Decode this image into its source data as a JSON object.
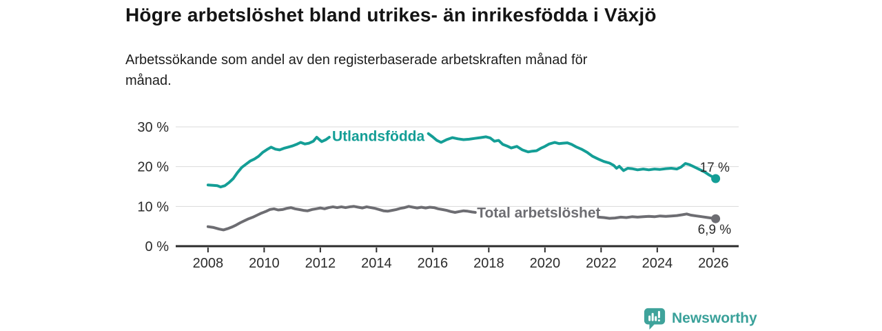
{
  "chart_data": {
    "type": "line",
    "title": "Högre arbetslöshet bland utrikes- än inrikesfödda i Växjö",
    "subtitle_lines": [
      "Arbetssökande som andel av den registerbaserade arbetskraften månad för",
      "månad."
    ],
    "xlabel": "",
    "ylabel": "",
    "xlim": [
      2006.85,
      2026.9
    ],
    "ylim": [
      0,
      30
    ],
    "x_ticks": [
      2008,
      2010,
      2012,
      2014,
      2016,
      2018,
      2020,
      2022,
      2024,
      2026
    ],
    "x_tick_labels": [
      "2008",
      "2010",
      "2012",
      "2014",
      "2016",
      "2018",
      "2020",
      "2022",
      "2024",
      "2026"
    ],
    "y_ticks": [
      0,
      10,
      20,
      30
    ],
    "y_tick_labels": [
      "0 %",
      "10 %",
      "20 %",
      "30 %"
    ],
    "grid": "horizontal",
    "legend_position": "inline-on-line",
    "colors": {
      "grid": "#d9d9d9",
      "axis": "#2b2b2b",
      "axis_text": "#2b2b2b"
    },
    "series": [
      {
        "name": "Utlandsfödda",
        "slug": "utlandsfodda",
        "color": "#149e96",
        "label_at": [
          2012.42,
          27.7
        ],
        "end_label": "17 %",
        "end_value": 17.0,
        "segments": [
          [
            [
              2008.0,
              15.4
            ],
            [
              2008.17,
              15.3
            ],
            [
              2008.33,
              15.2
            ],
            [
              2008.45,
              14.9
            ],
            [
              2008.6,
              15.2
            ],
            [
              2008.75,
              16.0
            ],
            [
              2008.9,
              17.0
            ],
            [
              2009.05,
              18.5
            ],
            [
              2009.2,
              19.8
            ],
            [
              2009.35,
              20.6
            ],
            [
              2009.5,
              21.4
            ],
            [
              2009.65,
              21.9
            ],
            [
              2009.8,
              22.6
            ],
            [
              2009.95,
              23.6
            ],
            [
              2010.1,
              24.3
            ],
            [
              2010.25,
              24.9
            ],
            [
              2010.4,
              24.4
            ],
            [
              2010.55,
              24.2
            ],
            [
              2010.7,
              24.6
            ],
            [
              2010.85,
              24.9
            ],
            [
              2011.0,
              25.2
            ],
            [
              2011.15,
              25.6
            ],
            [
              2011.3,
              26.1
            ],
            [
              2011.45,
              25.7
            ],
            [
              2011.6,
              25.9
            ],
            [
              2011.75,
              26.4
            ],
            [
              2011.87,
              27.4
            ],
            [
              2011.95,
              26.9
            ],
            [
              2012.05,
              26.3
            ],
            [
              2012.2,
              26.8
            ],
            [
              2012.32,
              27.4
            ]
          ],
          [
            [
              2015.85,
              28.3
            ],
            [
              2016.0,
              27.5
            ],
            [
              2016.15,
              26.6
            ],
            [
              2016.3,
              26.1
            ],
            [
              2016.5,
              26.8
            ],
            [
              2016.7,
              27.3
            ],
            [
              2016.9,
              27.0
            ],
            [
              2017.1,
              26.8
            ],
            [
              2017.3,
              26.9
            ],
            [
              2017.5,
              27.1
            ],
            [
              2017.7,
              27.3
            ],
            [
              2017.9,
              27.5
            ],
            [
              2018.05,
              27.2
            ],
            [
              2018.2,
              26.4
            ],
            [
              2018.35,
              26.6
            ],
            [
              2018.5,
              25.6
            ],
            [
              2018.65,
              25.2
            ],
            [
              2018.8,
              24.7
            ],
            [
              2019.0,
              25.1
            ],
            [
              2019.2,
              24.2
            ],
            [
              2019.4,
              23.7
            ],
            [
              2019.55,
              23.9
            ],
            [
              2019.7,
              24.0
            ],
            [
              2019.85,
              24.6
            ],
            [
              2020.0,
              25.1
            ],
            [
              2020.15,
              25.7
            ],
            [
              2020.35,
              26.1
            ],
            [
              2020.5,
              25.8
            ],
            [
              2020.65,
              25.9
            ],
            [
              2020.8,
              26.0
            ],
            [
              2020.95,
              25.6
            ],
            [
              2021.1,
              25.0
            ],
            [
              2021.3,
              24.4
            ],
            [
              2021.5,
              23.6
            ],
            [
              2021.7,
              22.6
            ],
            [
              2021.9,
              21.9
            ],
            [
              2022.1,
              21.3
            ],
            [
              2022.3,
              20.9
            ],
            [
              2022.45,
              20.3
            ],
            [
              2022.55,
              19.6
            ],
            [
              2022.65,
              20.1
            ],
            [
              2022.8,
              19.0
            ],
            [
              2022.95,
              19.6
            ],
            [
              2023.1,
              19.5
            ],
            [
              2023.3,
              19.2
            ],
            [
              2023.5,
              19.4
            ],
            [
              2023.7,
              19.2
            ],
            [
              2023.9,
              19.4
            ],
            [
              2024.1,
              19.3
            ],
            [
              2024.3,
              19.5
            ],
            [
              2024.5,
              19.6
            ],
            [
              2024.7,
              19.4
            ],
            [
              2024.85,
              19.9
            ],
            [
              2025.0,
              20.8
            ],
            [
              2025.15,
              20.5
            ],
            [
              2025.3,
              20.0
            ],
            [
              2025.5,
              19.3
            ],
            [
              2025.7,
              18.6
            ],
            [
              2025.85,
              17.9
            ],
            [
              2026.08,
              17.0
            ]
          ]
        ]
      },
      {
        "name": "Total arbetslöshet",
        "slug": "total-arbetsloshet",
        "color": "#6d6d72",
        "label_at": [
          2017.58,
          8.45
        ],
        "end_label": "6,9 %",
        "end_value": 6.9,
        "segments": [
          [
            [
              2008.0,
              4.9
            ],
            [
              2008.2,
              4.7
            ],
            [
              2008.4,
              4.3
            ],
            [
              2008.55,
              4.1
            ],
            [
              2008.7,
              4.4
            ],
            [
              2008.85,
              4.8
            ],
            [
              2009.0,
              5.3
            ],
            [
              2009.15,
              5.9
            ],
            [
              2009.3,
              6.4
            ],
            [
              2009.45,
              6.9
            ],
            [
              2009.6,
              7.3
            ],
            [
              2009.75,
              7.8
            ],
            [
              2009.9,
              8.3
            ],
            [
              2010.05,
              8.7
            ],
            [
              2010.2,
              9.2
            ],
            [
              2010.35,
              9.4
            ],
            [
              2010.5,
              9.1
            ],
            [
              2010.65,
              9.2
            ],
            [
              2010.8,
              9.5
            ],
            [
              2010.95,
              9.7
            ],
            [
              2011.1,
              9.4
            ],
            [
              2011.25,
              9.2
            ],
            [
              2011.4,
              9.0
            ],
            [
              2011.55,
              8.9
            ],
            [
              2011.7,
              9.2
            ],
            [
              2011.85,
              9.4
            ],
            [
              2012.0,
              9.6
            ],
            [
              2012.15,
              9.4
            ],
            [
              2012.3,
              9.7
            ],
            [
              2012.45,
              9.9
            ],
            [
              2012.6,
              9.7
            ],
            [
              2012.75,
              9.9
            ],
            [
              2012.9,
              9.7
            ],
            [
              2013.05,
              9.9
            ],
            [
              2013.2,
              10.0
            ],
            [
              2013.35,
              9.8
            ],
            [
              2013.5,
              9.6
            ],
            [
              2013.65,
              9.9
            ],
            [
              2013.8,
              9.7
            ],
            [
              2013.95,
              9.5
            ],
            [
              2014.1,
              9.2
            ],
            [
              2014.25,
              8.9
            ],
            [
              2014.4,
              8.8
            ],
            [
              2014.55,
              9.0
            ],
            [
              2014.7,
              9.2
            ],
            [
              2014.85,
              9.5
            ],
            [
              2015.0,
              9.7
            ],
            [
              2015.15,
              10.0
            ],
            [
              2015.3,
              9.8
            ],
            [
              2015.45,
              9.6
            ],
            [
              2015.6,
              9.8
            ],
            [
              2015.75,
              9.6
            ],
            [
              2015.9,
              9.8
            ],
            [
              2016.05,
              9.7
            ],
            [
              2016.2,
              9.4
            ],
            [
              2016.35,
              9.2
            ],
            [
              2016.5,
              9.0
            ],
            [
              2016.65,
              8.7
            ],
            [
              2016.8,
              8.5
            ],
            [
              2016.95,
              8.7
            ],
            [
              2017.1,
              8.9
            ],
            [
              2017.25,
              8.8
            ],
            [
              2017.4,
              8.6
            ],
            [
              2017.52,
              8.5
            ]
          ],
          [
            [
              2021.9,
              7.3
            ],
            [
              2022.1,
              7.2
            ],
            [
              2022.3,
              7.0
            ],
            [
              2022.5,
              7.1
            ],
            [
              2022.7,
              7.3
            ],
            [
              2022.9,
              7.2
            ],
            [
              2023.1,
              7.4
            ],
            [
              2023.3,
              7.3
            ],
            [
              2023.5,
              7.4
            ],
            [
              2023.7,
              7.5
            ],
            [
              2023.9,
              7.4
            ],
            [
              2024.1,
              7.6
            ],
            [
              2024.3,
              7.5
            ],
            [
              2024.5,
              7.6
            ],
            [
              2024.7,
              7.7
            ],
            [
              2024.9,
              7.9
            ],
            [
              2025.05,
              8.1
            ],
            [
              2025.2,
              7.8
            ],
            [
              2025.4,
              7.6
            ],
            [
              2025.6,
              7.4
            ],
            [
              2025.8,
              7.2
            ],
            [
              2026.0,
              7.0
            ],
            [
              2026.08,
              6.9
            ]
          ]
        ]
      }
    ]
  },
  "footer": {
    "brand": "Newsworthy",
    "logo_icon": "bar-chart-speech-bubble",
    "brand_color": "#3aa19a"
  }
}
